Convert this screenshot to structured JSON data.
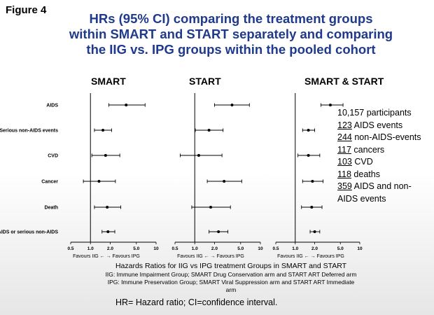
{
  "figure_label": "Figure 4",
  "title": [
    "HRs (95% CI) comparing the treatment groups",
    "within SMART and START separately and comparing",
    "the IIG vs. IPG groups within the pooled cohort"
  ],
  "stats": [
    {
      "num": "",
      "text": "10,157 participants"
    },
    {
      "num": "123",
      "text": " AIDS events"
    },
    {
      "num": "244",
      "text": " non-AIDS-events"
    },
    {
      "num": "117",
      "text": " cancers"
    },
    {
      "num": "103",
      "text": " CVD"
    },
    {
      "num": "118",
      "text": " deaths"
    },
    {
      "num": "359",
      "text": " AIDS and non-"
    },
    {
      "num": "",
      "text": "AIDS events"
    }
  ],
  "caption": {
    "line1": "Hazards Ratios for IIG vs IPG treatment Groups in SMART and START",
    "line2": "IIG: Immune Impairment Group; SMART Drug Conservation arm and START ART Deferred arm",
    "line3": "IPG: Immune Preservation Group; SMART Viral Suppression arm and START ART Immediate arm"
  },
  "footnote": "HR= Hazard ratio; CI=confidence interval.",
  "chart_data": {
    "type": "forest",
    "x_scale": "log",
    "xlim": [
      0.5,
      10
    ],
    "x_ticks": [
      "0.5",
      "1.0",
      "2.0",
      "5.0",
      "10"
    ],
    "x_tick_values": [
      0.5,
      1.0,
      2.0,
      5.0,
      10
    ],
    "reference_line": 1.0,
    "favours_label": "Favours IIG ←   → Favours IPG",
    "categories": [
      "AIDS",
      "Serious non-AIDS events",
      "CVD",
      "Cancer",
      "Death",
      "Any AIDS or serious non-AIDS"
    ],
    "panels": [
      {
        "title": "SMART",
        "estimates": [
          {
            "hr": 3.5,
            "lo": 1.9,
            "hi": 6.8
          },
          {
            "hr": 1.55,
            "lo": 1.15,
            "hi": 2.1
          },
          {
            "hr": 1.7,
            "lo": 1.05,
            "hi": 2.8
          },
          {
            "hr": 1.35,
            "lo": 0.78,
            "hi": 2.4
          },
          {
            "hr": 1.8,
            "lo": 1.15,
            "hi": 2.9
          },
          {
            "hr": 1.85,
            "lo": 1.5,
            "hi": 2.35
          }
        ]
      },
      {
        "title": "START",
        "estimates": [
          {
            "hr": 3.7,
            "lo": 2.0,
            "hi": 6.8
          },
          {
            "hr": 1.65,
            "lo": 1.02,
            "hi": 2.7
          },
          {
            "hr": 1.15,
            "lo": 0.6,
            "hi": 2.6
          },
          {
            "hr": 2.8,
            "lo": 1.55,
            "hi": 5.2
          },
          {
            "hr": 1.75,
            "lo": 0.9,
            "hi": 3.5
          },
          {
            "hr": 2.3,
            "lo": 1.65,
            "hi": 3.2
          }
        ]
      },
      {
        "title": "SMART & START",
        "estimates": [
          {
            "hr": 3.5,
            "lo": 2.5,
            "hi": 5.5
          },
          {
            "hr": 1.6,
            "lo": 1.3,
            "hi": 2.0
          },
          {
            "hr": 1.6,
            "lo": 1.1,
            "hi": 2.4
          },
          {
            "hr": 1.85,
            "lo": 1.3,
            "hi": 2.7
          },
          {
            "hr": 1.8,
            "lo": 1.25,
            "hi": 2.6
          },
          {
            "hr": 2.0,
            "lo": 1.7,
            "hi": 2.4
          }
        ]
      }
    ]
  }
}
